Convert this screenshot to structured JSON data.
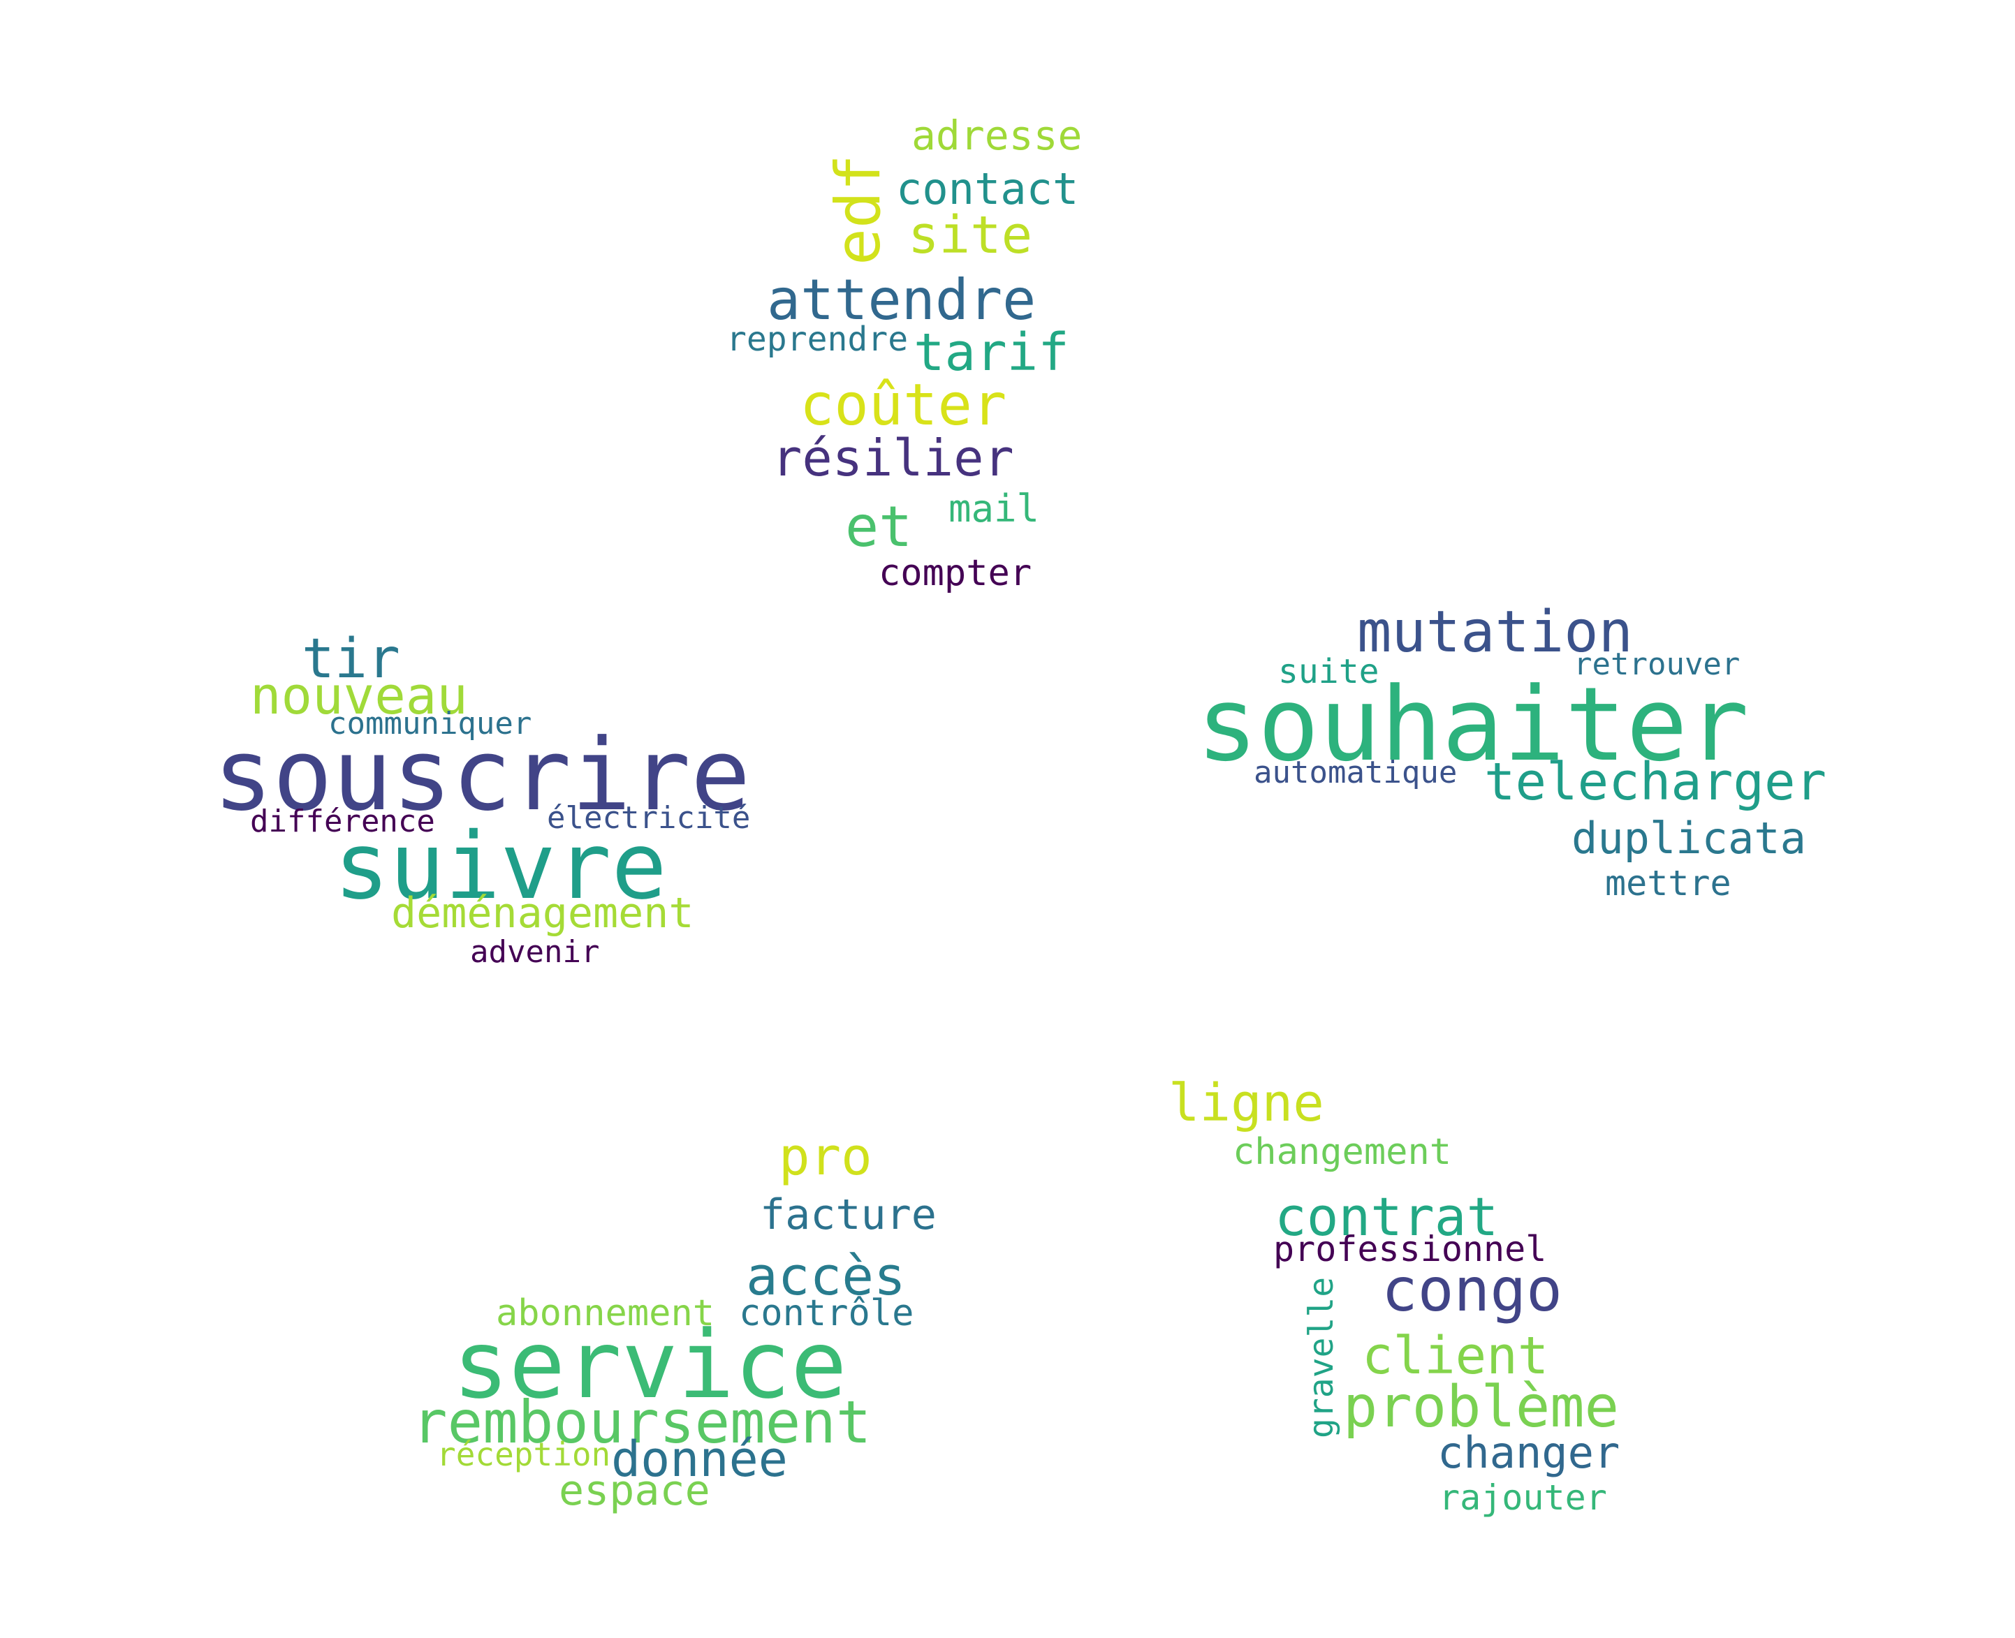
{
  "words": [
    {
      "text": "adresse",
      "color": "#9fd938"
    },
    {
      "text": "contact",
      "color": "#21918c"
    },
    {
      "text": "edf",
      "color": "#d2e21b"
    },
    {
      "text": "site",
      "color": "#bddf26"
    },
    {
      "text": "attendre",
      "color": "#31688e"
    },
    {
      "text": "reprendre",
      "color": "#2a788e"
    },
    {
      "text": "tarif",
      "color": "#22a884"
    },
    {
      "text": "coûter",
      "color": "#d8e219"
    },
    {
      "text": "résilier",
      "color": "#46327e"
    },
    {
      "text": "mail",
      "color": "#35b779"
    },
    {
      "text": "et",
      "color": "#4ac16d"
    },
    {
      "text": "compter",
      "color": "#440154"
    },
    {
      "text": "tir",
      "color": "#2a788e"
    },
    {
      "text": "nouveau",
      "color": "#a0da39"
    },
    {
      "text": "communiquer",
      "color": "#2c728e"
    },
    {
      "text": "souscrire",
      "color": "#414487"
    },
    {
      "text": "différence",
      "color": "#440154"
    },
    {
      "text": "électricité",
      "color": "#3b528b"
    },
    {
      "text": "suivre",
      "color": "#1f9e89"
    },
    {
      "text": "déménagement",
      "color": "#a5db36"
    },
    {
      "text": "advenir",
      "color": "#440154"
    },
    {
      "text": "mutation",
      "color": "#3b528b"
    },
    {
      "text": "suite",
      "color": "#1fa187"
    },
    {
      "text": "retrouver",
      "color": "#2c728e"
    },
    {
      "text": "souhaiter",
      "color": "#2db27d"
    },
    {
      "text": "automatique",
      "color": "#3b528b"
    },
    {
      "text": "telecharger",
      "color": "#1f9e89"
    },
    {
      "text": "duplicata",
      "color": "#2a788e"
    },
    {
      "text": "mettre",
      "color": "#2c728e"
    },
    {
      "text": "ligne",
      "color": "#c8e020"
    },
    {
      "text": "changement",
      "color": "#6ccd5a"
    },
    {
      "text": "contrat",
      "color": "#22a884"
    },
    {
      "text": "professionnel",
      "color": "#440154"
    },
    {
      "text": "congo",
      "color": "#414487"
    },
    {
      "text": "gravelle",
      "color": "#20a386"
    },
    {
      "text": "client",
      "color": "#84d44b"
    },
    {
      "text": "problème",
      "color": "#7ad151"
    },
    {
      "text": "changer",
      "color": "#31688e"
    },
    {
      "text": "rajouter",
      "color": "#35b779"
    },
    {
      "text": "pro",
      "color": "#d0e11c"
    },
    {
      "text": "facture",
      "color": "#2c728e"
    },
    {
      "text": "accès",
      "color": "#287c8e"
    },
    {
      "text": "abonnement",
      "color": "#86d549"
    },
    {
      "text": "contrôle",
      "color": "#2a788e"
    },
    {
      "text": "service",
      "color": "#3bbb75"
    },
    {
      "text": "remboursement",
      "color": "#58c765"
    },
    {
      "text": "réception",
      "color": "#a2da37"
    },
    {
      "text": "donnée",
      "color": "#2c728e"
    },
    {
      "text": "espace",
      "color": "#7ad151"
    }
  ]
}
